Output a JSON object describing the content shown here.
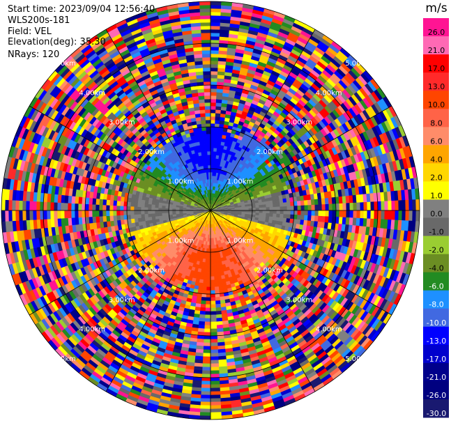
{
  "header": {
    "start_time": "Start time: 2023/09/04 12:56:40",
    "instrument": "WLS200s-181",
    "field": "Field: VEL",
    "elevation": "Elevation(deg): 35.30",
    "nrays": "NRays: 120"
  },
  "chart_data": {
    "type": "heatmap",
    "subtype": "ppi-polar",
    "n_rays": 120,
    "range_ring_labels_km": [
      "1.00km",
      "2.00km",
      "3.00km",
      "4.00km",
      "5.00km"
    ],
    "range_rings_km": [
      1,
      2,
      3,
      4,
      5
    ],
    "max_range_km": 5.0,
    "spoke_angles_deg": [
      0,
      30,
      60,
      90,
      120,
      150,
      180,
      210,
      240,
      270,
      300,
      330
    ],
    "velocity_pattern": {
      "north_of_radar": "negative (approx -2 to -13 m/s, blue core near center)",
      "south_of_radar": "positive (approx 2 to 13 m/s, orange/red core)",
      "clean_signal_range_km": 2.0,
      "beyond_range": "noise (random velocities)"
    },
    "colorbar": {
      "unit": "m/s",
      "tick_labels": [
        "26.0",
        "21.0",
        "17.0",
        "13.0",
        "10.0",
        "8.0",
        "6.0",
        "4.0",
        "2.0",
        "1.0",
        "0.0",
        "-1.0",
        "-2.0",
        "-4.0",
        "-6.0",
        "-8.0",
        "-10.0",
        "-13.0",
        "-17.0",
        "-21.0",
        "-26.0",
        "-30.0"
      ],
      "colors_top_to_bottom": [
        "#ff1493",
        "#ff69b4",
        "#ff0000",
        "#ff2a2a",
        "#ff4500",
        "#ff6347",
        "#ff8c69",
        "#ffa500",
        "#ffd700",
        "#ffff00",
        "#808080",
        "#696969",
        "#9acd32",
        "#6b8e23",
        "#228b22",
        "#1e90ff",
        "#4169e1",
        "#0000ff",
        "#0000cd",
        "#00008b",
        "#000080",
        "#191970"
      ]
    }
  }
}
